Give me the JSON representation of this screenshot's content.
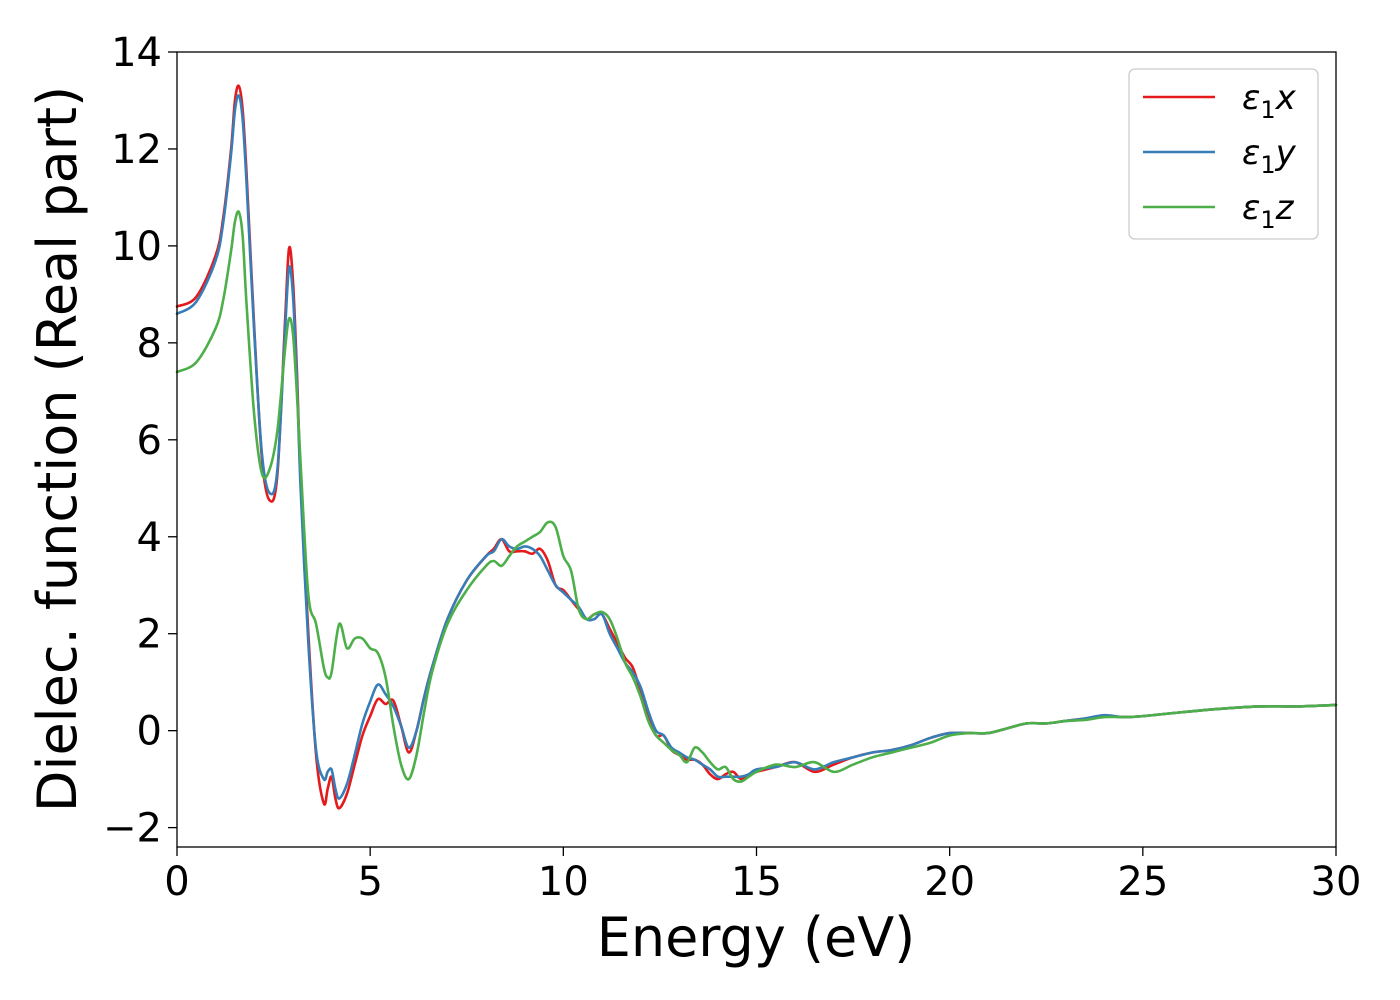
{
  "chart_data": {
    "type": "line",
    "xlabel": "Energy (eV)",
    "ylabel": "Dielec. function (Real part)",
    "xlim": [
      0,
      30
    ],
    "ylim": [
      -2.4,
      14.0
    ],
    "xticks": [
      0,
      5,
      10,
      15,
      20,
      25,
      30
    ],
    "yticks": [
      -2,
      0,
      2,
      4,
      6,
      8,
      10,
      12,
      14
    ],
    "xtick_labels": [
      "0",
      "5",
      "10",
      "15",
      "20",
      "25",
      "30"
    ],
    "ytick_labels": [
      "−2",
      "0",
      "2",
      "4",
      "6",
      "8",
      "10",
      "12",
      "14"
    ],
    "grid": false,
    "legend_position": "top-right",
    "series": [
      {
        "name": "ε₁x",
        "legend_main": "ε",
        "legend_sub": "1",
        "legend_var": "x",
        "color": "#e41a1c",
        "x": [
          0,
          0.5,
          1.0,
          1.2,
          1.4,
          1.5,
          1.6,
          1.7,
          1.8,
          2.0,
          2.2,
          2.4,
          2.6,
          2.8,
          2.9,
          3.0,
          3.1,
          3.2,
          3.4,
          3.6,
          3.8,
          3.9,
          4.0,
          4.1,
          4.2,
          4.4,
          4.6,
          4.8,
          5.0,
          5.2,
          5.4,
          5.6,
          5.8,
          6.0,
          6.2,
          6.4,
          6.6,
          7.0,
          7.5,
          8.0,
          8.2,
          8.4,
          8.6,
          8.8,
          9.0,
          9.2,
          9.4,
          9.6,
          9.8,
          10.0,
          10.2,
          10.4,
          10.6,
          10.8,
          11.0,
          11.2,
          11.4,
          11.6,
          11.8,
          12.0,
          12.2,
          12.4,
          12.6,
          12.8,
          13.0,
          13.2,
          13.4,
          13.6,
          13.8,
          14.0,
          14.2,
          14.4,
          14.6,
          14.8,
          15.0,
          15.5,
          16.0,
          16.5,
          17.0,
          17.5,
          18.0,
          18.5,
          19.0,
          19.5,
          20.0,
          20.5,
          21.0,
          21.5,
          22.0,
          22.5,
          23.0,
          23.5,
          24.0,
          24.5,
          25.0,
          26.0,
          27.0,
          28.0,
          29.0,
          30.0
        ],
        "y": [
          8.75,
          8.95,
          9.8,
          10.6,
          12.0,
          13.0,
          13.3,
          12.8,
          11.5,
          8.3,
          5.6,
          4.75,
          5.3,
          8.5,
          9.95,
          9.3,
          7.5,
          5.2,
          2.0,
          -0.5,
          -1.5,
          -1.2,
          -0.95,
          -1.4,
          -1.6,
          -1.3,
          -0.7,
          -0.1,
          0.3,
          0.65,
          0.55,
          0.62,
          0.1,
          -0.45,
          0.0,
          0.7,
          1.3,
          2.3,
          3.1,
          3.6,
          3.75,
          3.95,
          3.7,
          3.7,
          3.7,
          3.65,
          3.75,
          3.5,
          3.0,
          2.9,
          2.7,
          2.5,
          2.3,
          2.4,
          2.4,
          2.1,
          1.8,
          1.5,
          1.3,
          0.8,
          0.3,
          -0.1,
          -0.1,
          -0.4,
          -0.5,
          -0.6,
          -0.6,
          -0.7,
          -0.9,
          -1.0,
          -0.9,
          -0.85,
          -1.0,
          -0.9,
          -0.85,
          -0.75,
          -0.65,
          -0.85,
          -0.7,
          -0.55,
          -0.45,
          -0.4,
          -0.3,
          -0.15,
          -0.05,
          -0.05,
          -0.05,
          0.05,
          0.15,
          0.15,
          0.2,
          0.25,
          0.3,
          0.28,
          0.3,
          0.38,
          0.45,
          0.5,
          0.5,
          0.53
        ]
      },
      {
        "name": "ε₁y",
        "legend_main": "ε",
        "legend_sub": "1",
        "legend_var": "y",
        "color": "#377eb8",
        "x": [
          0,
          0.5,
          1.0,
          1.2,
          1.4,
          1.5,
          1.6,
          1.7,
          1.8,
          2.0,
          2.2,
          2.4,
          2.6,
          2.8,
          2.9,
          3.0,
          3.1,
          3.2,
          3.4,
          3.6,
          3.8,
          3.9,
          4.0,
          4.1,
          4.2,
          4.4,
          4.6,
          4.8,
          5.0,
          5.2,
          5.4,
          5.6,
          5.8,
          6.0,
          6.2,
          6.4,
          6.6,
          7.0,
          7.5,
          8.0,
          8.2,
          8.4,
          8.6,
          8.8,
          9.0,
          9.2,
          9.4,
          9.6,
          9.8,
          10.0,
          10.2,
          10.4,
          10.6,
          10.8,
          11.0,
          11.2,
          11.4,
          11.6,
          11.8,
          12.0,
          12.2,
          12.4,
          12.6,
          12.8,
          13.0,
          13.2,
          13.4,
          13.6,
          13.8,
          14.0,
          14.2,
          14.4,
          14.6,
          14.8,
          15.0,
          15.5,
          16.0,
          16.5,
          17.0,
          17.5,
          18.0,
          18.5,
          19.0,
          19.5,
          20.0,
          20.5,
          21.0,
          21.5,
          22.0,
          22.5,
          23.0,
          23.5,
          24.0,
          24.5,
          25.0,
          26.0,
          27.0,
          28.0,
          29.0,
          30.0
        ],
        "y": [
          8.6,
          8.85,
          9.7,
          10.5,
          11.9,
          12.8,
          13.1,
          12.6,
          11.3,
          8.2,
          5.7,
          4.9,
          5.4,
          8.3,
          9.55,
          9.0,
          7.3,
          5.0,
          1.8,
          -0.4,
          -1.0,
          -0.85,
          -0.8,
          -1.2,
          -1.4,
          -1.1,
          -0.5,
          0.15,
          0.6,
          0.95,
          0.75,
          0.5,
          0.1,
          -0.35,
          0.0,
          0.7,
          1.3,
          2.3,
          3.1,
          3.6,
          3.7,
          3.95,
          3.8,
          3.75,
          3.8,
          3.75,
          3.6,
          3.3,
          3.0,
          2.85,
          2.7,
          2.55,
          2.3,
          2.3,
          2.4,
          2.0,
          1.7,
          1.4,
          1.2,
          0.9,
          0.4,
          0.0,
          -0.1,
          -0.35,
          -0.45,
          -0.55,
          -0.6,
          -0.7,
          -0.8,
          -0.95,
          -0.95,
          -0.95,
          -0.95,
          -0.9,
          -0.8,
          -0.75,
          -0.65,
          -0.8,
          -0.65,
          -0.55,
          -0.45,
          -0.4,
          -0.3,
          -0.15,
          -0.05,
          -0.05,
          -0.05,
          0.05,
          0.15,
          0.15,
          0.2,
          0.25,
          0.32,
          0.28,
          0.3,
          0.38,
          0.45,
          0.5,
          0.5,
          0.53
        ]
      },
      {
        "name": "ε₁z",
        "legend_main": "ε",
        "legend_sub": "1",
        "legend_var": "z",
        "color": "#4daf4a",
        "x": [
          0,
          0.5,
          1.0,
          1.2,
          1.4,
          1.5,
          1.6,
          1.7,
          1.8,
          2.0,
          2.2,
          2.4,
          2.6,
          2.8,
          2.9,
          3.0,
          3.1,
          3.2,
          3.4,
          3.6,
          3.8,
          3.9,
          4.0,
          4.2,
          4.4,
          4.6,
          4.8,
          5.0,
          5.2,
          5.4,
          5.6,
          5.8,
          6.0,
          6.2,
          6.4,
          6.6,
          7.0,
          7.5,
          8.0,
          8.2,
          8.4,
          8.6,
          8.8,
          9.0,
          9.2,
          9.4,
          9.6,
          9.8,
          10.0,
          10.2,
          10.4,
          10.6,
          10.8,
          11.0,
          11.2,
          11.4,
          11.6,
          11.8,
          12.0,
          12.2,
          12.4,
          12.6,
          12.8,
          13.0,
          13.2,
          13.4,
          13.6,
          13.8,
          14.0,
          14.2,
          14.4,
          14.6,
          14.8,
          15.0,
          15.5,
          16.0,
          16.5,
          17.0,
          17.5,
          18.0,
          18.5,
          19.0,
          19.5,
          20.0,
          20.5,
          21.0,
          21.5,
          22.0,
          22.5,
          23.0,
          23.5,
          24.0,
          24.5,
          25.0,
          26.0,
          27.0,
          28.0,
          29.0,
          30.0
        ],
        "y": [
          7.4,
          7.6,
          8.3,
          8.9,
          9.9,
          10.5,
          10.7,
          10.2,
          8.8,
          6.5,
          5.3,
          5.4,
          6.2,
          7.9,
          8.5,
          8.2,
          7.0,
          5.5,
          2.8,
          2.2,
          1.3,
          1.1,
          1.2,
          2.2,
          1.7,
          1.9,
          1.9,
          1.7,
          1.6,
          1.1,
          0.1,
          -0.7,
          -1.0,
          -0.5,
          0.4,
          1.2,
          2.2,
          2.9,
          3.4,
          3.5,
          3.4,
          3.6,
          3.8,
          3.9,
          4.0,
          4.1,
          4.3,
          4.2,
          3.6,
          3.3,
          2.5,
          2.3,
          2.4,
          2.45,
          2.3,
          1.9,
          1.4,
          1.1,
          0.7,
          0.2,
          -0.1,
          -0.25,
          -0.4,
          -0.5,
          -0.65,
          -0.35,
          -0.45,
          -0.65,
          -0.8,
          -0.75,
          -1.0,
          -1.05,
          -0.95,
          -0.85,
          -0.7,
          -0.75,
          -0.65,
          -0.85,
          -0.7,
          -0.55,
          -0.45,
          -0.35,
          -0.25,
          -0.1,
          -0.05,
          -0.05,
          0.05,
          0.15,
          0.15,
          0.2,
          0.22,
          0.28,
          0.28,
          0.3,
          0.38,
          0.45,
          0.5,
          0.5,
          0.53
        ]
      }
    ]
  }
}
